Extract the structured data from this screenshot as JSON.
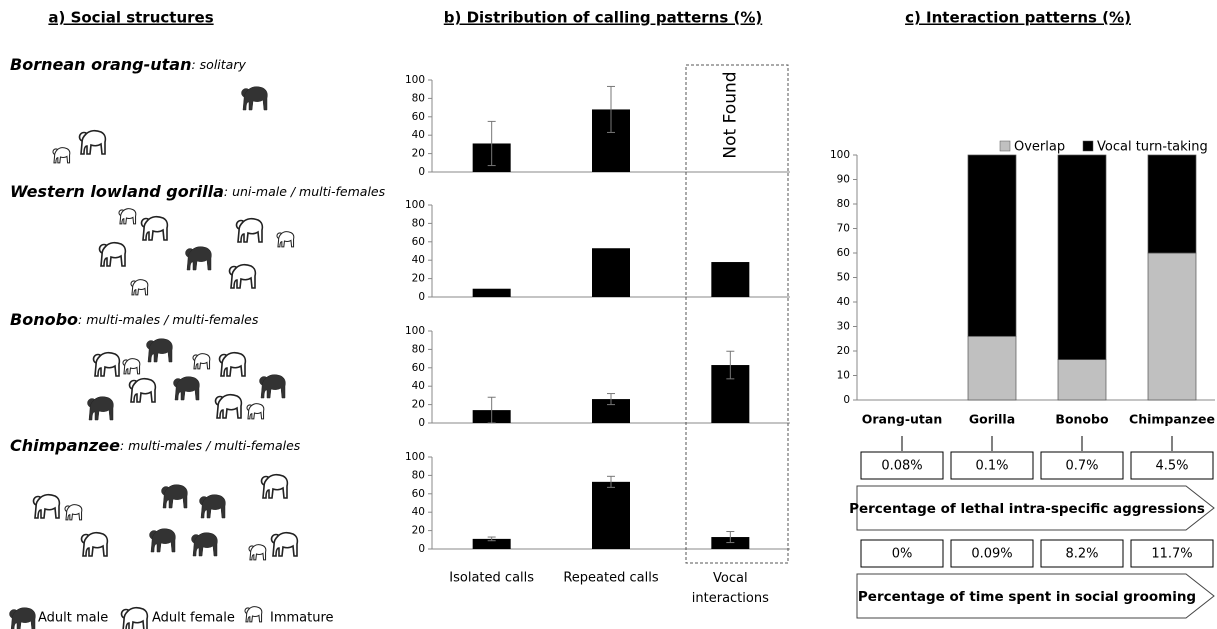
{
  "panel_a": {
    "title": "a) Social structures",
    "species": [
      {
        "name": "Bornean orang-utan",
        "structure": ": solitary"
      },
      {
        "name": "Western lowland gorilla",
        "structure": ": uni-male / multi-females"
      },
      {
        "name": "Bonobo",
        "structure": ": multi-males / multi-females"
      },
      {
        "name": "Chimpanzee",
        "structure": ": multi-males / multi-females"
      }
    ],
    "legend": [
      "Adult male",
      "Adult female",
      "Immature"
    ]
  },
  "chart_data": [
    {
      "type": "bar-grid",
      "title": "b) Distribution of calling patterns (%)",
      "categories": [
        "Isolated calls",
        "Repeated calls",
        "Vocal interactions"
      ],
      "color": "#000000",
      "ylim": [
        0,
        100
      ],
      "yticks": [
        0,
        20,
        40,
        60,
        80,
        100
      ],
      "rows": [
        {
          "values": [
            31,
            68,
            null
          ],
          "errors": [
            24,
            25,
            null
          ],
          "annotation": "Not Found"
        },
        {
          "values": [
            9,
            53,
            38
          ]
        },
        {
          "values": [
            14,
            26,
            63
          ],
          "errors": [
            14,
            6,
            15
          ]
        },
        {
          "values": [
            11,
            73,
            13
          ],
          "errors": [
            2,
            6,
            6
          ]
        }
      ]
    },
    {
      "type": "stacked-bar",
      "title": "c) Interaction patterns (%)",
      "categories": [
        "Orang-utan",
        "Gorilla",
        "Bonobo",
        "Chimpanzee"
      ],
      "ylim": [
        0,
        100
      ],
      "yticks": [
        0,
        10,
        20,
        30,
        40,
        50,
        60,
        70,
        80,
        90,
        100
      ],
      "legend": "top-right",
      "series": [
        {
          "name": "Overlap",
          "color": "#c0c0c0",
          "values": [
            null,
            26,
            16.5,
            60
          ]
        },
        {
          "name": "Vocal turn-taking",
          "color": "#000000",
          "values": [
            null,
            74,
            83.5,
            40
          ]
        }
      ]
    }
  ],
  "comparisons": [
    {
      "label": "Percentage of lethal intra-specific aggressions",
      "values": [
        "0.08%",
        "0.1%",
        "0.7%",
        "4.5%"
      ]
    },
    {
      "label": "Percentage of time spent in social grooming",
      "values": [
        "0%",
        "0.09%",
        "8.2%",
        "11.7%"
      ]
    }
  ]
}
